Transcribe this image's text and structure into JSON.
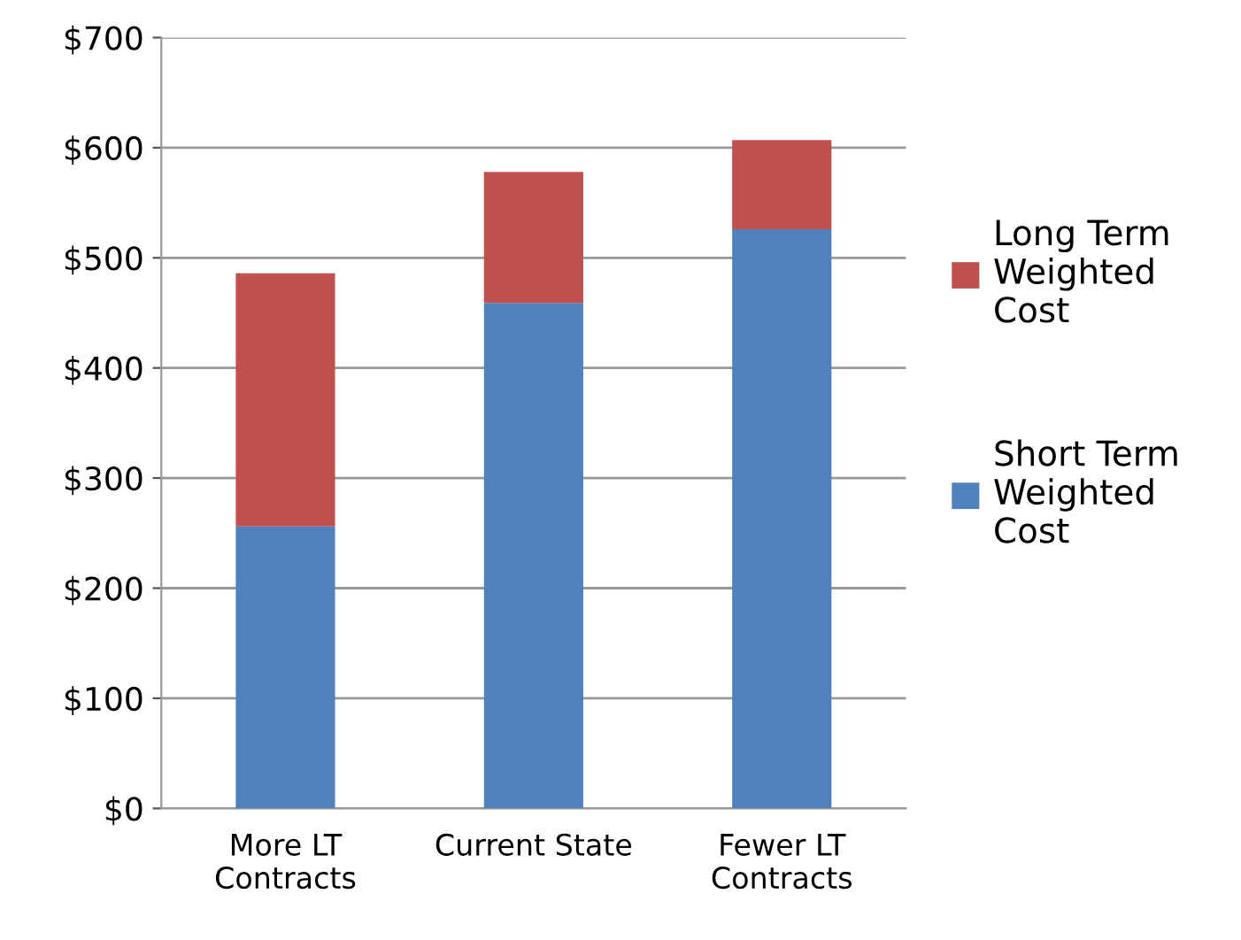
{
  "chart_data": {
    "type": "bar",
    "stacked": true,
    "categories": [
      "More LT\nContracts",
      "Current State",
      "Fewer LT\nContracts"
    ],
    "series": [
      {
        "name": "Short Term\nWeighted\nCost",
        "color": "#4f81bd",
        "values": [
          256,
          459,
          526
        ]
      },
      {
        "name": "Long Term\nWeighted\nCost",
        "color": "#c0504d",
        "values": [
          230,
          119,
          81
        ]
      }
    ],
    "ylim": [
      0,
      700
    ],
    "yticks": [
      {
        "value": 0,
        "label": "$0"
      },
      {
        "value": 100,
        "label": "$100"
      },
      {
        "value": 200,
        "label": "$200"
      },
      {
        "value": 300,
        "label": "$300"
      },
      {
        "value": 400,
        "label": "$400"
      },
      {
        "value": 500,
        "label": "$500"
      },
      {
        "value": 600,
        "label": "$600"
      },
      {
        "value": 700,
        "label": "$700"
      }
    ],
    "grid": "y",
    "legend": "right"
  }
}
